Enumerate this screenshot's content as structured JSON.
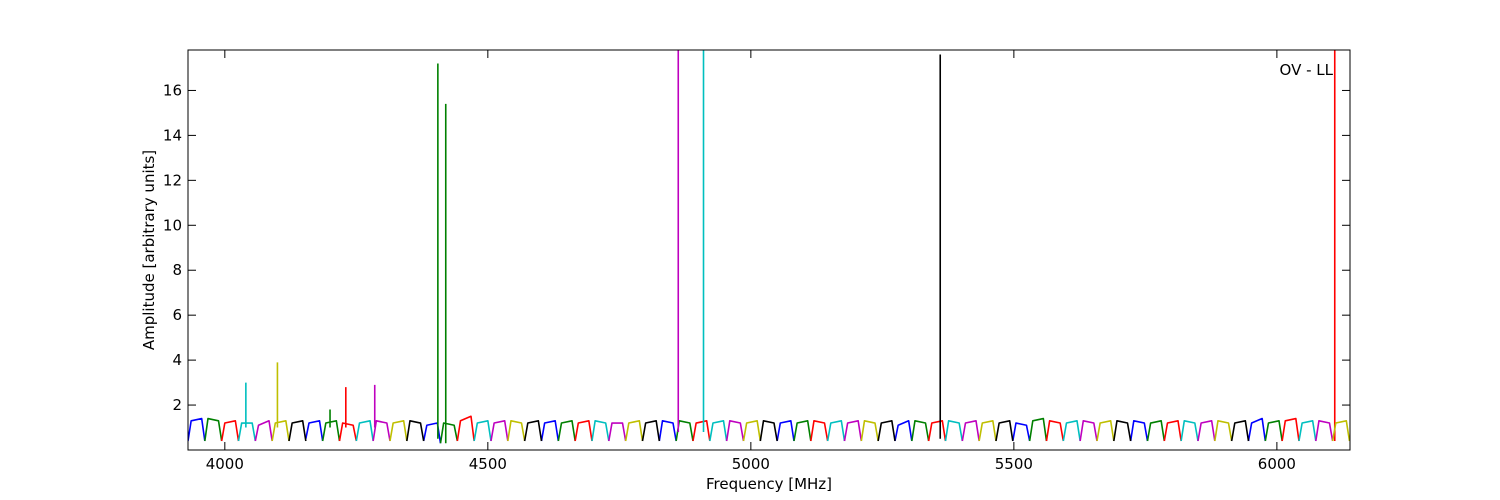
{
  "chart_data": {
    "type": "line",
    "xlabel": "Frequency [MHz]",
    "ylabel": "Amplitude [arbitrary units]",
    "annotation": "OV - LL",
    "xlim": [
      3930,
      6139
    ],
    "xticks": [
      4000,
      4500,
      5000,
      5500,
      6000
    ],
    "ylim": [
      0,
      17.8
    ],
    "yticks": [
      2,
      4,
      6,
      8,
      10,
      12,
      14,
      16
    ],
    "series": [
      {
        "color": "#0000ff",
        "x": [
          3930,
          3936,
          3956,
          3962,
          null,
          4154,
          4160,
          4180,
          4186,
          null,
          4378,
          4384,
          4404,
          4410,
          null,
          4602,
          4608,
          4628,
          4634,
          null,
          4826,
          4832,
          4852,
          4858,
          null,
          5050,
          5056,
          5076,
          5082,
          null,
          5274,
          5280,
          5300,
          5306,
          null,
          5498,
          5504,
          5524,
          5530,
          null,
          5722,
          5728,
          5748,
          5754,
          null,
          5946,
          5952,
          5972,
          5978
        ],
        "values": [
          0.4,
          1.3,
          1.4,
          0.4,
          null,
          0.5,
          1.2,
          1.3,
          0.4,
          null,
          0.4,
          1.1,
          1.2,
          0.3,
          null,
          0.4,
          1.2,
          1.3,
          0.4,
          null,
          0.4,
          1.3,
          1.2,
          0.4,
          null,
          0.4,
          1.2,
          1.3,
          0.4,
          null,
          0.4,
          1.1,
          1.3,
          0.4,
          null,
          0.4,
          1.2,
          1.1,
          0.4,
          null,
          0.4,
          1.3,
          1.2,
          0.4,
          null,
          0.4,
          1.2,
          1.4,
          0.4
        ]
      },
      {
        "color": "#008000",
        "x": [
          3962,
          3968,
          3988,
          3994,
          null,
          4186,
          4192,
          4212,
          4218,
          null,
          4410,
          4416,
          4436,
          4442,
          null,
          4634,
          4640,
          4660,
          4666,
          null,
          4858,
          4864,
          4884,
          4890,
          null,
          5082,
          5088,
          5108,
          5114,
          null,
          5306,
          5312,
          5332,
          5338,
          null,
          5530,
          5536,
          5556,
          5562,
          null,
          5754,
          5760,
          5780,
          5786,
          null,
          5978,
          5984,
          6004,
          6010,
          null,
          4405,
          4405,
          null,
          4420,
          4420,
          null,
          4200,
          4200
        ],
        "values": [
          0.4,
          1.4,
          1.3,
          0.4,
          null,
          0.4,
          1.2,
          1.3,
          0.4,
          null,
          0.3,
          1.2,
          1.1,
          0.4,
          null,
          0.4,
          1.2,
          1.3,
          0.4,
          null,
          0.4,
          1.3,
          1.2,
          0.4,
          null,
          0.4,
          1.2,
          1.3,
          0.4,
          null,
          0.4,
          1.3,
          1.2,
          0.4,
          null,
          0.4,
          1.3,
          1.4,
          0.4,
          null,
          0.4,
          1.2,
          1.3,
          0.4,
          null,
          0.4,
          1.2,
          1.3,
          0.4,
          null,
          0.5,
          17.2,
          null,
          0.3,
          15.4,
          null,
          1.0,
          1.8
        ]
      },
      {
        "color": "#ff0000",
        "x": [
          3994,
          4000,
          4020,
          4026,
          null,
          4218,
          4224,
          4244,
          4250,
          null,
          4442,
          4448,
          4468,
          4474,
          null,
          4666,
          4672,
          4692,
          4698,
          null,
          4890,
          4896,
          4916,
          4922,
          null,
          5114,
          5120,
          5140,
          5146,
          null,
          5338,
          5344,
          5364,
          5370,
          null,
          5562,
          5568,
          5588,
          5594,
          null,
          5786,
          5792,
          5812,
          5818,
          null,
          6010,
          6016,
          6036,
          6042,
          null,
          6110,
          6110,
          null,
          4230,
          4230
        ],
        "values": [
          0.4,
          1.2,
          1.3,
          0.4,
          null,
          0.4,
          1.2,
          1.1,
          0.4,
          null,
          0.4,
          1.3,
          1.5,
          0.4,
          null,
          0.4,
          1.2,
          1.3,
          0.4,
          null,
          0.4,
          1.2,
          1.3,
          0.4,
          null,
          0.4,
          1.3,
          1.2,
          0.4,
          null,
          0.4,
          1.2,
          1.3,
          0.4,
          null,
          0.4,
          1.3,
          1.2,
          0.4,
          null,
          0.4,
          1.2,
          1.3,
          0.4,
          null,
          0.4,
          1.3,
          1.4,
          0.4,
          null,
          0.4,
          17.8,
          null,
          1.0,
          2.8
        ]
      },
      {
        "color": "#00bfbf",
        "x": [
          4026,
          4032,
          4052,
          4058,
          null,
          4250,
          4256,
          4276,
          4282,
          null,
          4474,
          4480,
          4500,
          4506,
          null,
          4698,
          4704,
          4724,
          4730,
          null,
          4922,
          4928,
          4948,
          4954,
          null,
          5146,
          5152,
          5172,
          5178,
          null,
          5370,
          5376,
          5396,
          5402,
          null,
          5594,
          5600,
          5620,
          5626,
          null,
          5818,
          5824,
          5844,
          5850,
          null,
          6042,
          6048,
          6068,
          6074,
          null,
          4910,
          4910,
          null,
          4040,
          4040
        ],
        "values": [
          0.4,
          1.2,
          1.2,
          0.4,
          null,
          0.4,
          1.2,
          1.3,
          0.4,
          null,
          0.4,
          1.2,
          1.3,
          0.4,
          null,
          0.4,
          1.3,
          1.2,
          0.4,
          null,
          0.4,
          1.2,
          1.3,
          0.4,
          null,
          0.4,
          1.2,
          1.3,
          0.4,
          null,
          0.4,
          1.3,
          1.2,
          0.4,
          null,
          0.4,
          1.2,
          1.3,
          0.4,
          null,
          0.4,
          1.3,
          1.2,
          0.4,
          null,
          0.4,
          1.2,
          1.3,
          0.4,
          null,
          0.8,
          17.8,
          null,
          1.0,
          3.0
        ]
      },
      {
        "color": "#bf00bf",
        "x": [
          4058,
          4064,
          4084,
          4090,
          null,
          4282,
          4288,
          4308,
          4314,
          null,
          4506,
          4512,
          4532,
          4538,
          null,
          4730,
          4736,
          4756,
          4762,
          null,
          4954,
          4960,
          4980,
          4986,
          null,
          5178,
          5184,
          5204,
          5210,
          null,
          5402,
          5408,
          5428,
          5434,
          null,
          5626,
          5632,
          5652,
          5658,
          null,
          5850,
          5856,
          5876,
          5882,
          null,
          6074,
          6080,
          6100,
          6106,
          null,
          4862,
          4862,
          null,
          4285,
          4285
        ],
        "values": [
          0.4,
          1.1,
          1.3,
          0.4,
          null,
          0.4,
          1.3,
          1.2,
          0.4,
          null,
          0.4,
          1.2,
          1.3,
          0.4,
          null,
          0.4,
          1.2,
          1.2,
          0.4,
          null,
          0.4,
          1.3,
          1.2,
          0.4,
          null,
          0.4,
          1.2,
          1.3,
          0.4,
          null,
          0.4,
          1.2,
          1.3,
          0.4,
          null,
          0.4,
          1.3,
          1.2,
          0.4,
          null,
          0.4,
          1.2,
          1.3,
          0.4,
          null,
          0.4,
          1.3,
          1.2,
          0.4,
          null,
          0.8,
          17.8,
          null,
          1.0,
          2.9
        ]
      },
      {
        "color": "#bfbf00",
        "x": [
          4090,
          4096,
          4116,
          4122,
          null,
          4314,
          4320,
          4340,
          4346,
          null,
          4538,
          4544,
          4564,
          4570,
          null,
          4762,
          4768,
          4788,
          4794,
          null,
          4986,
          4992,
          5012,
          5018,
          null,
          5210,
          5216,
          5236,
          5242,
          null,
          5434,
          5440,
          5460,
          5466,
          null,
          5658,
          5664,
          5684,
          5690,
          null,
          5882,
          5888,
          5908,
          5914,
          null,
          6106,
          6112,
          6132,
          6138,
          null,
          4100,
          4100
        ],
        "values": [
          0.4,
          1.2,
          1.3,
          0.4,
          null,
          0.4,
          1.2,
          1.3,
          0.4,
          null,
          0.4,
          1.3,
          1.2,
          0.4,
          null,
          0.4,
          1.2,
          1.3,
          0.4,
          null,
          0.4,
          1.2,
          1.3,
          0.4,
          null,
          0.4,
          1.3,
          1.2,
          0.4,
          null,
          0.4,
          1.2,
          1.3,
          0.4,
          null,
          0.4,
          1.2,
          1.3,
          0.4,
          null,
          0.4,
          1.3,
          1.2,
          0.4,
          null,
          0.4,
          1.2,
          1.3,
          0.4,
          null,
          1.0,
          3.9
        ]
      },
      {
        "color": "#000000",
        "x": [
          4122,
          4128,
          4148,
          4154,
          null,
          4346,
          4352,
          4372,
          4378,
          null,
          4570,
          4576,
          4596,
          4602,
          null,
          4794,
          4800,
          4820,
          4826,
          null,
          5018,
          5024,
          5044,
          5050,
          null,
          5242,
          5248,
          5268,
          5274,
          null,
          5466,
          5472,
          5492,
          5498,
          null,
          5690,
          5696,
          5716,
          5722,
          null,
          5914,
          5920,
          5940,
          5946,
          null,
          5360,
          5360
        ],
        "values": [
          0.4,
          1.2,
          1.3,
          0.4,
          null,
          0.4,
          1.3,
          1.2,
          0.4,
          null,
          0.4,
          1.2,
          1.3,
          0.4,
          null,
          0.4,
          1.2,
          1.3,
          0.4,
          null,
          0.4,
          1.3,
          1.2,
          0.4,
          null,
          0.4,
          1.2,
          1.3,
          0.4,
          null,
          0.4,
          1.2,
          1.3,
          0.4,
          null,
          0.4,
          1.3,
          1.2,
          0.4,
          null,
          0.4,
          1.2,
          1.3,
          0.4,
          null,
          0.5,
          17.6
        ]
      }
    ]
  }
}
